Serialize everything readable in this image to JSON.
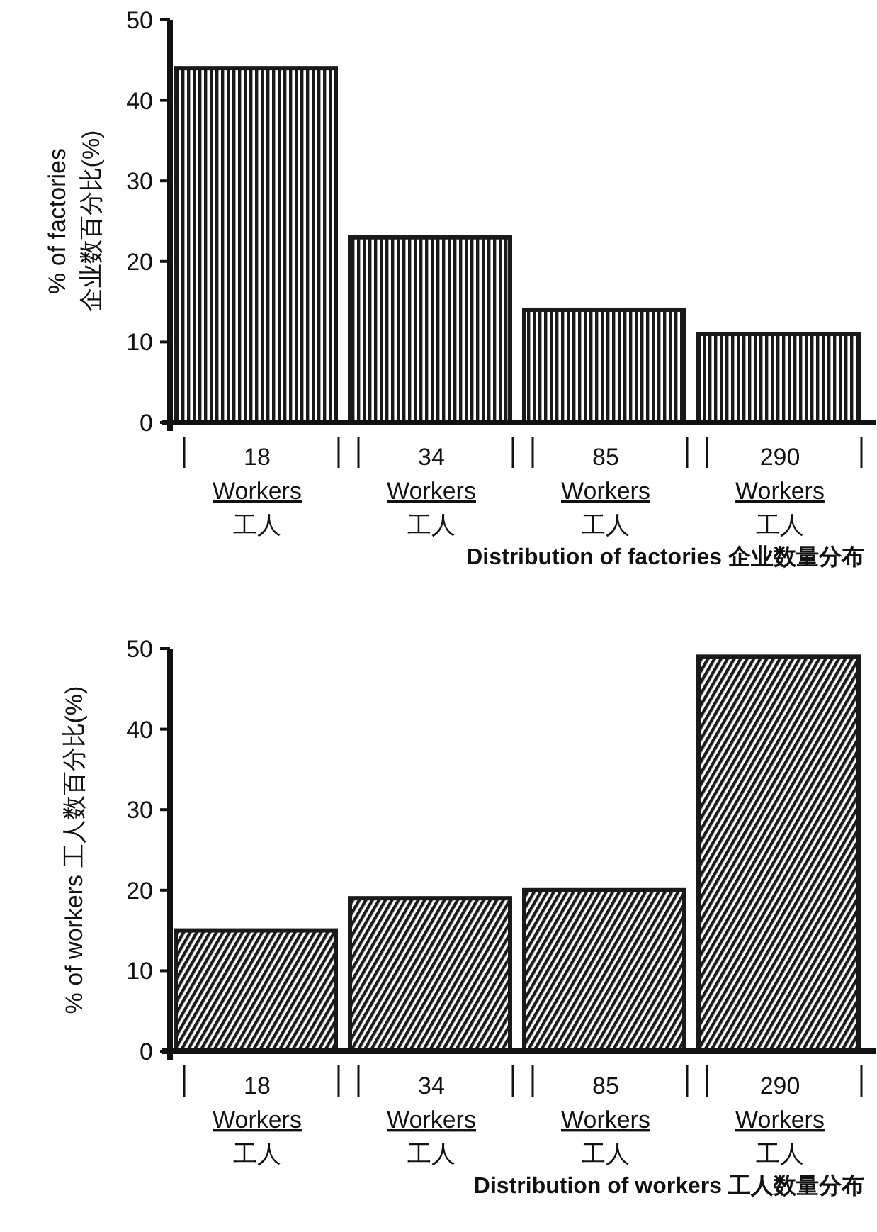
{
  "chart_data": [
    {
      "type": "bar",
      "title": "Distribution of factories 企业数量分布",
      "ylabel": "% of factories\n企业数百分比(%)",
      "categories": [
        "18\nWorkers\n工人",
        "34\nWorkers\n工人",
        "85\nWorkers\n工人",
        "290\nWorkers\n工人"
      ],
      "values": [
        44,
        23,
        14,
        11
      ],
      "color": "#1a1a1a",
      "ylim": [
        0,
        50
      ],
      "yticks": [
        0,
        10,
        20,
        30,
        40,
        50
      ]
    },
    {
      "type": "bar",
      "title": "Distribution of workers 工人数量分布",
      "ylabel": "% of workers 工人数百分比(%)",
      "categories": [
        "18\nWorkers\n工人",
        "34\nWorkers\n工人",
        "85\nWorkers\n工人",
        "290\nWorkers\n工人"
      ],
      "values": [
        15,
        19,
        20,
        49
      ],
      "color": "#1a1a1a",
      "ylim": [
        0,
        50
      ],
      "yticks": [
        0,
        10,
        20,
        30,
        40,
        50
      ]
    }
  ]
}
